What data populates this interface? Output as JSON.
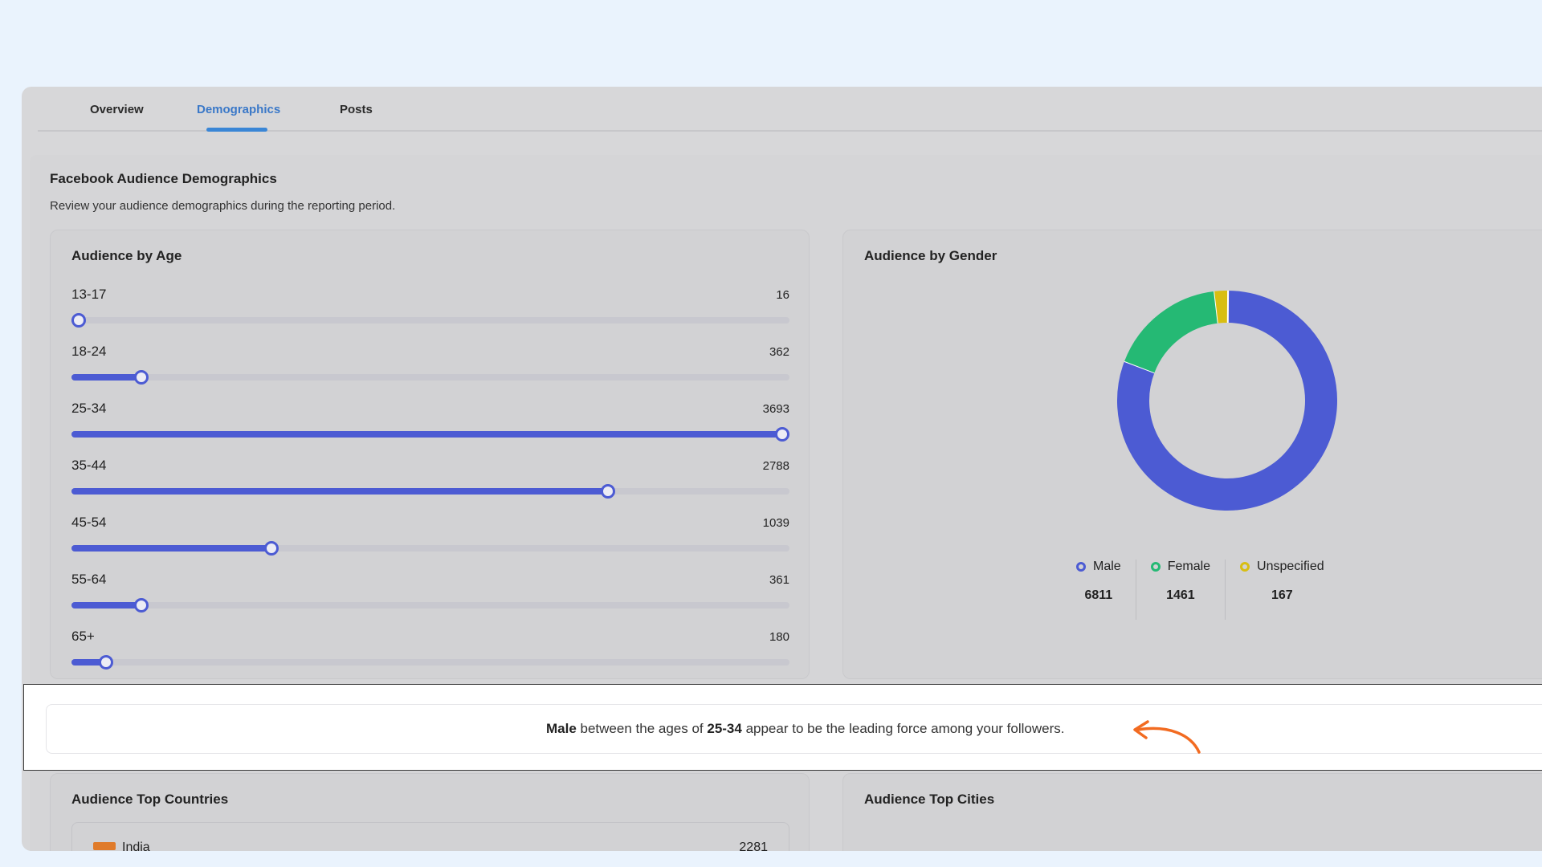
{
  "tabs": [
    {
      "label": "Overview",
      "active": false
    },
    {
      "label": "Demographics",
      "active": true
    },
    {
      "label": "Posts",
      "active": false
    }
  ],
  "panel": {
    "title": "Facebook Audience Demographics",
    "subtitle": "Review your audience demographics during the reporting period."
  },
  "age_card": {
    "title": "Audience by Age",
    "max": 3693,
    "rows": [
      {
        "label": "13-17",
        "value": 16
      },
      {
        "label": "18-24",
        "value": 362
      },
      {
        "label": "25-34",
        "value": 3693
      },
      {
        "label": "35-44",
        "value": 2788
      },
      {
        "label": "45-54",
        "value": 1039
      },
      {
        "label": "55-64",
        "value": 361
      },
      {
        "label": "65+",
        "value": 180
      }
    ],
    "accent_color": "#4c5bd3"
  },
  "gender_card": {
    "title": "Audience by Gender",
    "segments": [
      {
        "label": "Male",
        "value": 6811,
        "value_text": "6811",
        "color": "#4c5bd3"
      },
      {
        "label": "Female",
        "value": 1461,
        "value_text": "1461",
        "color": "#25b974"
      },
      {
        "label": "Unspecified",
        "value": 167,
        "value_text": "167",
        "color": "#d8be12"
      }
    ]
  },
  "insight": {
    "part1": "Male",
    "part2": " between the ages of ",
    "part3": "25-34",
    "part4": " appear to be the leading force among your followers.",
    "arrow_icon": "curved-arrow-icon",
    "arrow_color": "#f26b21"
  },
  "countries_card": {
    "title": "Audience Top Countries",
    "first": {
      "name": "India",
      "value": "2281"
    }
  },
  "cities_card": {
    "title": "Audience Top Cities"
  }
}
